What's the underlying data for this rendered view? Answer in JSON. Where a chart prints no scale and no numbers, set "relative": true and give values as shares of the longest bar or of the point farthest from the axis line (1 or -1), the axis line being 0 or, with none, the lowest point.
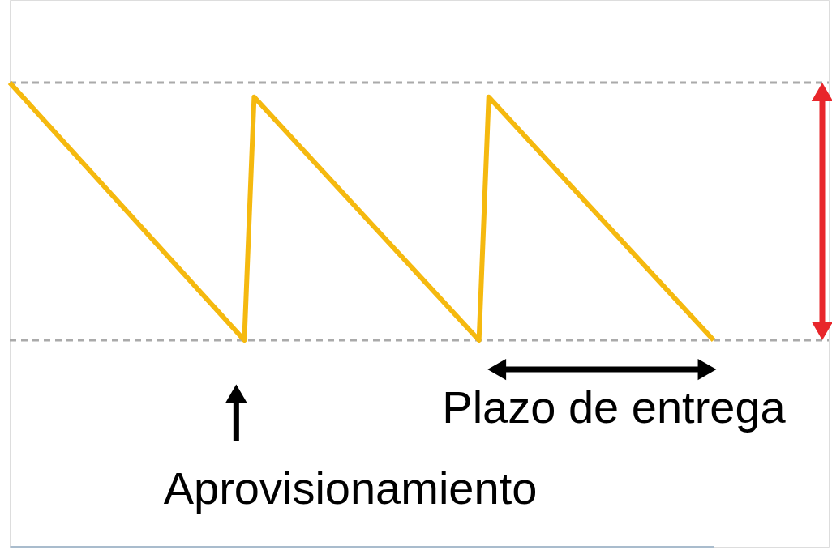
{
  "chart_data": {
    "type": "line",
    "relative": true,
    "line_style": "solid",
    "categories": [
      null,
      null,
      null,
      null,
      null,
      null,
      null,
      null,
      null,
      null,
      null,
      null,
      null,
      null,
      null,
      null,
      null,
      null,
      null,
      null,
      null,
      null,
      null,
      null,
      null,
      null,
      null,
      null,
      null,
      null,
      null,
      null,
      null,
      null,
      null,
      null,
      null,
      null,
      null,
      null,
      null,
      null,
      null,
      null,
      null,
      null,
      null,
      null,
      null,
      null,
      null,
      null,
      null,
      null,
      null,
      null,
      null,
      null,
      null,
      null,
      null,
      null,
      null,
      null,
      null,
      null,
      null,
      null,
      null,
      null,
      null,
      null,
      null
    ],
    "series": [
      {
        "color": "#f5b90f",
        "values": [
          1,
          null,
          null,
          null,
          null,
          null,
          null,
          null,
          null,
          null,
          null,
          null,
          null,
          null,
          null,
          null,
          null,
          null,
          null,
          null,
          null,
          null,
          null,
          null,
          0.445,
          0.969,
          null,
          null,
          null,
          null,
          null,
          null,
          null,
          null,
          null,
          null,
          null,
          null,
          null,
          null,
          null,
          null,
          null,
          null,
          null,
          null,
          null,
          null,
          0.445,
          0.969,
          null,
          null,
          null,
          null,
          null,
          null,
          null,
          null,
          null,
          null,
          null,
          null,
          null,
          null,
          null,
          null,
          null,
          null,
          null,
          null,
          null,
          null,
          0.445
        ]
      }
    ],
    "ref_lines": [
      {
        "axis": "y",
        "value": 1,
        "color": "#aaaaaa",
        "line_style": "dashed"
      },
      {
        "axis": "y",
        "value": 0.445,
        "color": "#aaaaaa",
        "line_style": "dashed"
      }
    ],
    "annotations": [
      "Plazo de entrega",
      "Aprovisionamiento"
    ]
  }
}
